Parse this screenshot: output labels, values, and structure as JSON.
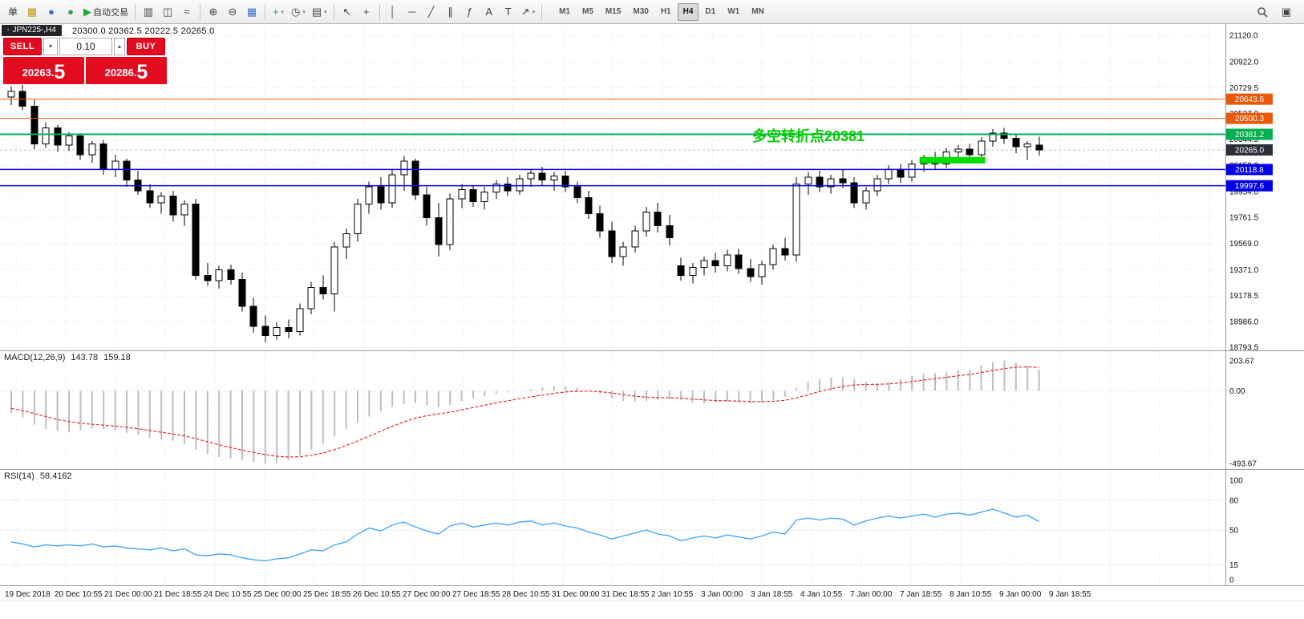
{
  "toolbar": {
    "dropdown_glyph": "▾",
    "buttons": [
      {
        "name": "new-order-button",
        "glyph": "单",
        "text_button": true
      },
      {
        "name": "new-chart-button",
        "glyph": "▦",
        "color": "#c79810"
      },
      {
        "name": "profiles-button",
        "glyph": "●",
        "color": "#3b6fc9"
      },
      {
        "name": "market-watch-button",
        "glyph": "●",
        "color": "#2a9d5c"
      },
      {
        "name": "autotrading-button",
        "glyph": "▶",
        "label": "自动交易",
        "color": "#21a63f"
      },
      {
        "sep": true
      },
      {
        "name": "bar-chart-button",
        "glyph": "▥"
      },
      {
        "name": "candlestick-chart-button",
        "glyph": "◫"
      },
      {
        "name": "line-chart-button",
        "glyph": "≈"
      },
      {
        "sep": true
      },
      {
        "name": "zoom-in-button",
        "glyph": "⊕"
      },
      {
        "name": "zoom-out-button",
        "glyph": "⊖"
      },
      {
        "name": "tile-windows-button",
        "glyph": "▦",
        "color": "#3b6fc9"
      },
      {
        "sep": true
      },
      {
        "name": "indicators-button",
        "glyph": "+",
        "color": "#21a63f",
        "dropdown": true
      },
      {
        "name": "periods-button",
        "glyph": "◷",
        "dropdown": true
      },
      {
        "name": "templates-button",
        "glyph": "▤",
        "dropdown": true
      },
      {
        "sep": true
      },
      {
        "name": "cursor-button",
        "glyph": "↖"
      },
      {
        "name": "crosshair-button",
        "glyph": "+"
      },
      {
        "sep": true
      },
      {
        "name": "vertical-line-button",
        "glyph": "│"
      },
      {
        "name": "horizontal-line-button",
        "glyph": "─"
      },
      {
        "name": "trendline-button",
        "glyph": "╱"
      },
      {
        "name": "channel-button",
        "glyph": "∥"
      },
      {
        "name": "fibonacci-button",
        "glyph": "ƒ"
      },
      {
        "name": "text-button",
        "glyph": "A"
      },
      {
        "name": "text-label-button",
        "glyph": "T"
      },
      {
        "name": "arrows-button",
        "glyph": "↗",
        "dropdown": true
      },
      {
        "sep": true
      }
    ],
    "timeframes": [
      "M1",
      "M5",
      "M15",
      "M30",
      "H1",
      "H4",
      "D1",
      "W1",
      "MN"
    ],
    "active_timeframe": "H4",
    "right_buttons": [
      {
        "name": "search-button",
        "icon": "magnifier"
      },
      {
        "name": "quick-menu-button",
        "glyph": "▣"
      }
    ]
  },
  "chart_header": {
    "tab_icon_glyph": "▪",
    "symbol_tab": "JPN225-,H4",
    "ohlc": "20300.0 20362.5 20222.5 20265.0"
  },
  "trade_panel": {
    "sell_label": "SELL",
    "buy_label": "BUY",
    "volume": "0.10",
    "dropdown_glyph": "▼",
    "spinner_glyph": "▲",
    "sell_price_small": "20263.",
    "sell_price_big": "5",
    "buy_price_small": "20286.",
    "buy_price_big": "5",
    "accent_color": "#e30b20"
  },
  "annotation": {
    "text": "多空转折点20381",
    "color": "#00cc00"
  },
  "levels": [
    {
      "label": "20643.6",
      "price": 20643.6,
      "color": "#e8590c",
      "width": 1
    },
    {
      "label": "20500.3",
      "price": 20500.3,
      "color": "#e8590c",
      "width": 1
    },
    {
      "label": "20381.2",
      "price": 20381.2,
      "color": "#00b050",
      "width": 2
    },
    {
      "label": "20118.8",
      "price": 20118.8,
      "color": "#0000e8",
      "width": 1.5
    },
    {
      "label": "19997.6",
      "price": 19997.6,
      "color": "#0000e8",
      "width": 1.5
    }
  ],
  "current_price": {
    "label": "20265.0",
    "value": 20265.0,
    "badge_color": "#2b2f36"
  },
  "highlight_zone": {
    "start_index": 79,
    "end_index": 84,
    "price_top": 20212,
    "price_bottom": 20164,
    "color": "#00dd00"
  },
  "price_ticks": [
    "21120.0",
    "20922.0",
    "20729.5",
    "20537.0",
    "20344.5",
    "20152.0",
    "19954.0",
    "19761.5",
    "19569.0",
    "19371.0",
    "19178.5",
    "18986.0",
    "18793.5"
  ],
  "indicators": {
    "macd": {
      "label": "MACD(12,26,9)",
      "value_main": "143.78",
      "value_signal": "159.18",
      "axis": [
        "203.67",
        "0.00",
        "-493.67"
      ]
    },
    "rsi": {
      "label": "RSI(14)",
      "value": "58.4162",
      "axis": [
        "100",
        "80",
        "50",
        "15",
        "0"
      ],
      "levels": [
        80,
        50,
        15
      ]
    }
  },
  "chart_data": {
    "type": "candlestick",
    "title": "JPN225-,H4",
    "ylim": [
      18793.5,
      21120.0
    ],
    "x_labels": [
      "19 Dec 2018",
      "20 Dec 10:55",
      "21 Dec 00:00",
      "21 Dec 18:55",
      "24 Dec 10:55",
      "25 Dec 00:00",
      "25 Dec 18:55",
      "26 Dec 10:55",
      "27 Dec 00:00",
      "27 Dec 18:55",
      "28 Dec 10:55",
      "31 Dec 00:00",
      "31 Dec 18:55",
      "2 Jan 10:55",
      "3 Jan 00:00",
      "3 Jan 18:55",
      "4 Jan 10:55",
      "7 Jan 00:00",
      "7 Jan 18:55",
      "8 Jan 10:55",
      "9 Jan 00:00",
      "9 Jan 18:55"
    ],
    "ohlc": [
      [
        20660,
        20740,
        20600,
        20700
      ],
      [
        20700,
        20750,
        20560,
        20590
      ],
      [
        20590,
        20640,
        20270,
        20310
      ],
      [
        20310,
        20470,
        20280,
        20430
      ],
      [
        20430,
        20450,
        20250,
        20300
      ],
      [
        20300,
        20400,
        20260,
        20370
      ],
      [
        20370,
        20390,
        20190,
        20230
      ],
      [
        20230,
        20330,
        20170,
        20310
      ],
      [
        20310,
        20340,
        20080,
        20120
      ],
      [
        20120,
        20230,
        20060,
        20180
      ],
      [
        20180,
        20200,
        19990,
        20040
      ],
      [
        20040,
        20110,
        19930,
        19960
      ],
      [
        19960,
        20010,
        19830,
        19870
      ],
      [
        19870,
        19950,
        19790,
        19920
      ],
      [
        19920,
        19960,
        19730,
        19780
      ],
      [
        19780,
        19890,
        19700,
        19860
      ],
      [
        19860,
        19900,
        19300,
        19330
      ],
      [
        19330,
        19420,
        19250,
        19290
      ],
      [
        19290,
        19400,
        19230,
        19370
      ],
      [
        19370,
        19410,
        19260,
        19300
      ],
      [
        19300,
        19350,
        19060,
        19100
      ],
      [
        19100,
        19160,
        18900,
        18950
      ],
      [
        18950,
        19030,
        18830,
        18880
      ],
      [
        18880,
        18980,
        18850,
        18940
      ],
      [
        18940,
        19000,
        18860,
        18910
      ],
      [
        18910,
        19120,
        18880,
        19080
      ],
      [
        19080,
        19280,
        19040,
        19240
      ],
      [
        19240,
        19330,
        19150,
        19190
      ],
      [
        19190,
        19580,
        19060,
        19540
      ],
      [
        19540,
        19680,
        19450,
        19640
      ],
      [
        19640,
        19900,
        19580,
        19860
      ],
      [
        19860,
        20030,
        19790,
        19990
      ],
      [
        19990,
        20060,
        19820,
        19870
      ],
      [
        19870,
        20120,
        19830,
        20080
      ],
      [
        20080,
        20220,
        19960,
        20180
      ],
      [
        20180,
        20200,
        19890,
        19930
      ],
      [
        19930,
        19990,
        19700,
        19760
      ],
      [
        19760,
        19870,
        19470,
        19560
      ],
      [
        19560,
        19940,
        19520,
        19900
      ],
      [
        19900,
        20010,
        19830,
        19970
      ],
      [
        19970,
        20000,
        19840,
        19880
      ],
      [
        19880,
        19990,
        19820,
        19950
      ],
      [
        19950,
        20040,
        19900,
        20010
      ],
      [
        20010,
        20060,
        19920,
        19960
      ],
      [
        19960,
        20080,
        19930,
        20050
      ],
      [
        20050,
        20120,
        19990,
        20090
      ],
      [
        20090,
        20140,
        20000,
        20040
      ],
      [
        20040,
        20100,
        19960,
        20070
      ],
      [
        20070,
        20110,
        19950,
        19990
      ],
      [
        19990,
        20030,
        19870,
        19910
      ],
      [
        19910,
        19960,
        19750,
        19790
      ],
      [
        19790,
        19850,
        19610,
        19660
      ],
      [
        19660,
        19730,
        19420,
        19470
      ],
      [
        19470,
        19580,
        19400,
        19540
      ],
      [
        19540,
        19700,
        19500,
        19660
      ],
      [
        19660,
        19840,
        19620,
        19800
      ],
      [
        19800,
        19870,
        19650,
        19700
      ],
      [
        19700,
        19780,
        19550,
        19610
      ],
      [
        19400,
        19460,
        19290,
        19330
      ],
      [
        19330,
        19420,
        19270,
        19390
      ],
      [
        19390,
        19470,
        19330,
        19440
      ],
      [
        19440,
        19500,
        19350,
        19400
      ],
      [
        19400,
        19520,
        19360,
        19480
      ],
      [
        19480,
        19530,
        19340,
        19380
      ],
      [
        19380,
        19450,
        19280,
        19320
      ],
      [
        19320,
        19440,
        19260,
        19410
      ],
      [
        19410,
        19560,
        19370,
        19530
      ],
      [
        19530,
        19610,
        19440,
        19480
      ],
      [
        19480,
        20060,
        19430,
        20010
      ],
      [
        20010,
        20100,
        19930,
        20060
      ],
      [
        20060,
        20110,
        19950,
        19990
      ],
      [
        19990,
        20080,
        19940,
        20050
      ],
      [
        20050,
        20120,
        19980,
        20020
      ],
      [
        20020,
        20060,
        19830,
        19870
      ],
      [
        19870,
        19990,
        19820,
        19960
      ],
      [
        19960,
        20080,
        19920,
        20050
      ],
      [
        20050,
        20150,
        20010,
        20120
      ],
      [
        20120,
        20160,
        20020,
        20060
      ],
      [
        20060,
        20190,
        20030,
        20160
      ],
      [
        20160,
        20230,
        20100,
        20200
      ],
      [
        20200,
        20250,
        20120,
        20160
      ],
      [
        20160,
        20280,
        20130,
        20250
      ],
      [
        20250,
        20300,
        20180,
        20270
      ],
      [
        20270,
        20310,
        20190,
        20230
      ],
      [
        20230,
        20360,
        20200,
        20330
      ],
      [
        20330,
        20420,
        20290,
        20390
      ],
      [
        20390,
        20430,
        20310,
        20350
      ],
      [
        20350,
        20380,
        20240,
        20290
      ],
      [
        20290,
        20330,
        20190,
        20310
      ],
      [
        20300,
        20362.5,
        20222.5,
        20265
      ]
    ],
    "indicators": [
      {
        "type": "bar",
        "name": "MACD_histogram",
        "ylim": [
          -493.67,
          203.67
        ],
        "values": [
          -150,
          -180,
          -230,
          -260,
          -270,
          -280,
          -270,
          -255,
          -260,
          -270,
          -285,
          -300,
          -320,
          -330,
          -340,
          -360,
          -400,
          -430,
          -450,
          -460,
          -470,
          -485,
          -493.67,
          -490,
          -470,
          -440,
          -400,
          -360,
          -310,
          -260,
          -215,
          -175,
          -140,
          -110,
          -90,
          -85,
          -100,
          -110,
          -95,
          -70,
          -50,
          -35,
          -20,
          -10,
          0,
          10,
          20,
          30,
          30,
          20,
          0,
          -20,
          -50,
          -70,
          -75,
          -70,
          -60,
          -55,
          -60,
          -80,
          -85,
          -80,
          -75,
          -80,
          -85,
          -80,
          -60,
          -40,
          20,
          60,
          80,
          90,
          90,
          80,
          60,
          50,
          60,
          80,
          100,
          115,
          120,
          130,
          140,
          145,
          175,
          195,
          203.67,
          190,
          168,
          143.78
        ]
      },
      {
        "type": "line",
        "name": "MACD_signal",
        "values": [
          -120,
          -135,
          -155,
          -175,
          -195,
          -210,
          -220,
          -228,
          -233,
          -240,
          -248,
          -258,
          -270,
          -282,
          -293,
          -306,
          -325,
          -346,
          -367,
          -386,
          -403,
          -419,
          -434,
          -445,
          -450,
          -448,
          -438,
          -423,
          -400,
          -372,
          -341,
          -308,
          -274,
          -241,
          -211,
          -186,
          -169,
          -157,
          -145,
          -130,
          -114,
          -98,
          -82,
          -68,
          -54,
          -41,
          -29,
          -17,
          -8,
          -3,
          -2,
          -6,
          -15,
          -26,
          -36,
          -43,
          -46,
          -48,
          -50,
          -56,
          -62,
          -66,
          -68,
          -70,
          -73,
          -74,
          -71,
          -65,
          -48,
          -26,
          -5,
          14,
          29,
          39,
          43,
          44,
          47,
          54,
          63,
          73,
          82,
          92,
          102,
          111,
          124,
          138,
          151,
          160,
          162,
          159.18
        ]
      },
      {
        "type": "line",
        "name": "RSI",
        "ylim": [
          0,
          100
        ],
        "levels": [
          80,
          50,
          15
        ],
        "values": [
          38,
          36,
          33,
          35,
          34,
          35,
          34,
          36,
          33,
          34,
          32,
          31,
          30,
          32,
          29,
          31,
          25,
          24,
          26,
          25,
          22,
          20,
          19,
          21,
          22,
          26,
          30,
          29,
          35,
          38,
          46,
          52,
          49,
          55,
          58,
          53,
          49,
          46,
          54,
          57,
          53,
          55,
          57,
          55,
          58,
          59,
          55,
          57,
          54,
          52,
          48,
          45,
          41,
          44,
          47,
          50,
          46,
          44,
          39,
          42,
          44,
          42,
          45,
          43,
          41,
          44,
          48,
          46,
          60,
          62,
          60,
          62,
          61,
          55,
          59,
          62,
          64,
          62,
          64,
          66,
          63,
          66,
          67,
          65,
          68,
          71,
          67,
          63,
          65,
          58.4162
        ]
      }
    ]
  }
}
